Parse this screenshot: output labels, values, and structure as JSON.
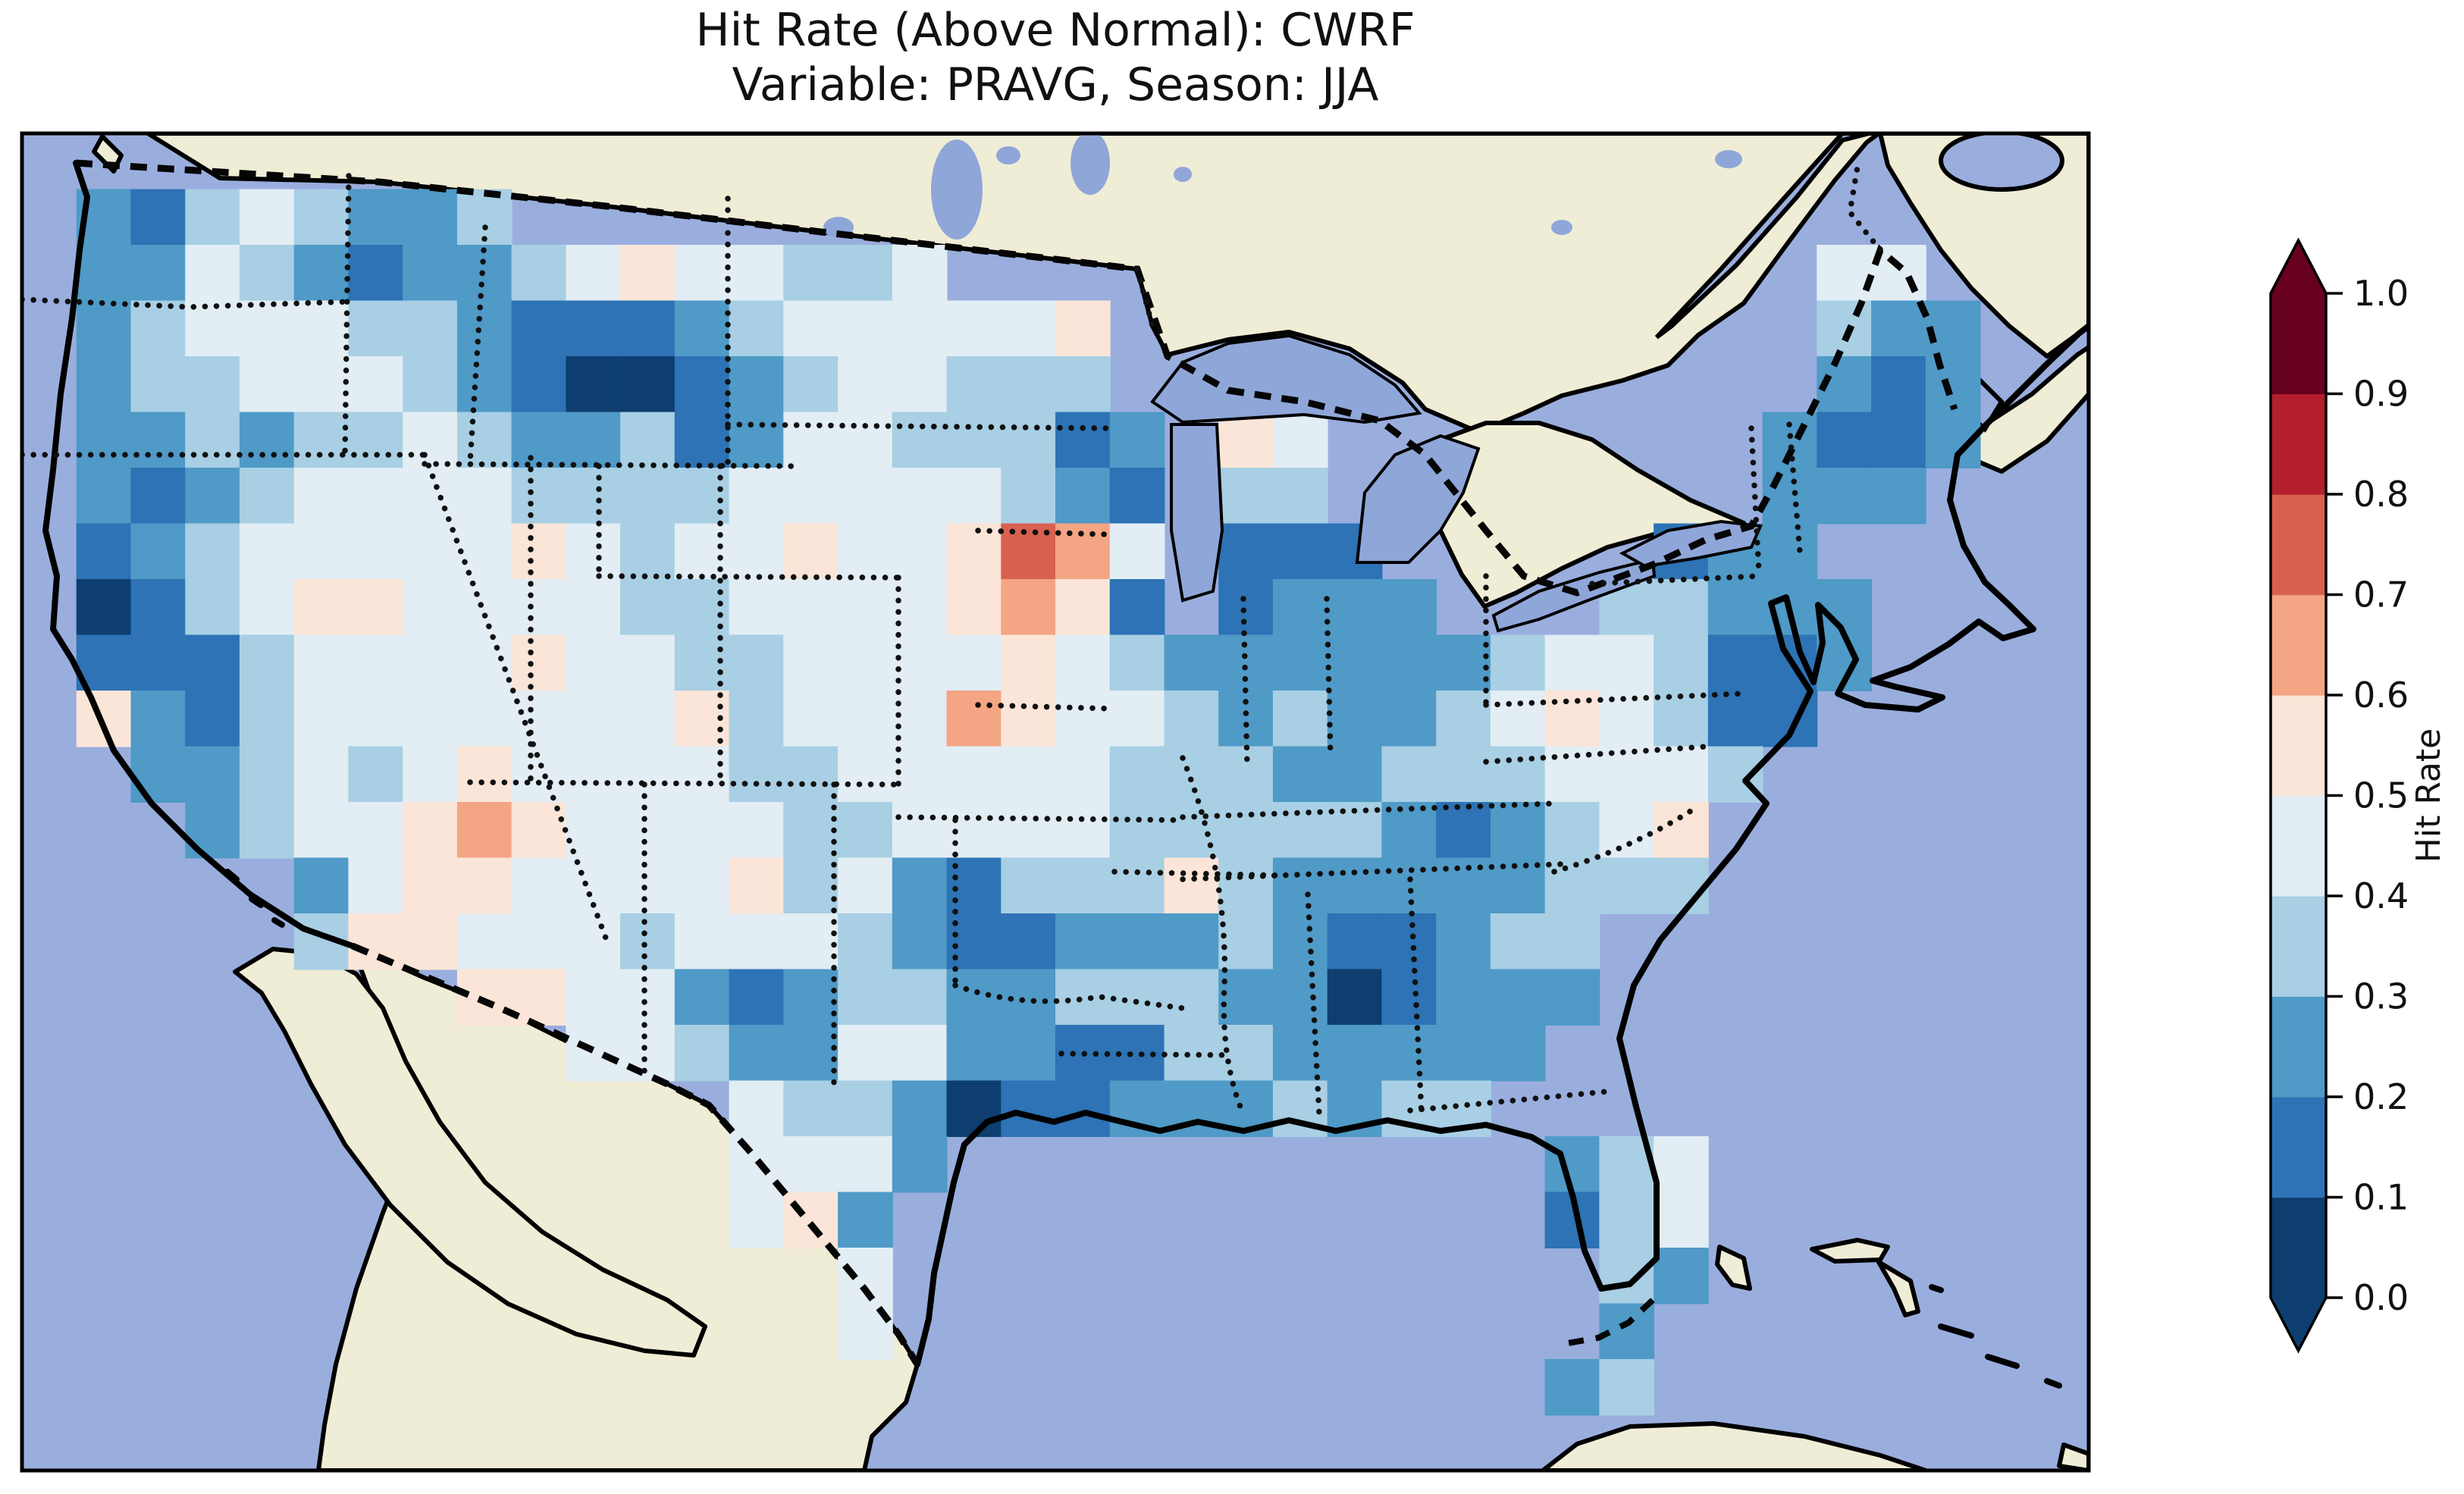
{
  "title": {
    "line1": "Hit Rate (Above Normal): CWRF",
    "line2": "Variable: PRAVG, Season: JJA"
  },
  "colorbar": {
    "label": "Hit Rate",
    "ticks": [
      "0.0",
      "0.1",
      "0.2",
      "0.3",
      "0.4",
      "0.5",
      "0.6",
      "0.7",
      "0.8",
      "0.9",
      "1.0"
    ],
    "tick_values": [
      0.0,
      0.1,
      0.2,
      0.3,
      0.4,
      0.5,
      0.6,
      0.7,
      0.8,
      0.9,
      1.0
    ],
    "band_colors": [
      "#0d3e6f",
      "#2d73b5",
      "#4f9ac7",
      "#a8cfe4",
      "#e2edf4",
      "#fbe5d8",
      "#f4a583",
      "#d8604e",
      "#b41f2e",
      "#67001f"
    ],
    "under_color": "#0d3e6f",
    "over_color": "#67001f",
    "extend": "both"
  },
  "map": {
    "ocean_color": "#9aaede",
    "foreign_land_color": "#f0edd6",
    "lake_color": "#8fa6d9",
    "coast_color": "#000000",
    "frame_color": "#000000"
  },
  "chart_data": {
    "type": "heatmap",
    "title": "Hit Rate (Above Normal): CWRF",
    "subtitle": "Variable: PRAVG, Season: JJA",
    "variable": "PRAVG",
    "season": "JJA",
    "model": "CWRF",
    "metric": "Hit Rate (Above Normal)",
    "legend_label": "Hit Rate",
    "region": "Continental United States",
    "colormap": "RdBu_r binned in 0.1 steps from 0.0 to 1.0, colorbar extended both ends",
    "value_range": [
      0.0,
      1.0
    ],
    "bin_width": 0.1,
    "grid_encoding": {
      ".": "ocean / no data",
      "C": "non-US land (Canada, Mexico, Bahamas, Cuba) - no data",
      "W": "large inland lake - no data",
      "digit 0-9": "hit-rate bin index k, cell value in [k/10, k/10+0.1]"
    },
    "grid_shape": {
      "rows": 24,
      "cols": 38
    },
    "grid": [
      "..CCCCCCCCCCCCCCCCCCCCCCCCCCCCCCCCCCC.",
      ".21343223CCCCCCCCCCCCCCCCCCCCCCCCCCCC.",
      ".2243212234544334CCCCCCCCCCCCCCCC44CC.",
      ".2344433211123444445CCCCCCCCCCCCC322C.",
      ".2334443210012344333CWWWWCCCCCCCC212C.",
      ".22323343223124433312W54WWCCCCCC2112C.",
      ".21234444333344444321W33WCCCCCWW222.CC",
      ".12344444543445445764W111WCCCW122.....",
      ".01345544443344445651W1222WWW33222....",
      ".111344445443344445432222223443112....",
      ".52134444444534446544323223454311.....",
      "..223434544443344444333223334443......",
      "...2344565444433444433333212345.......",
      ".....24554444534213335322222333.......",
      ".....355444344432112223211233.........",
      "....CCCC554421233223332201222.........",
      "....C.CCCC443224422113322222..........",
      ".....CC.CCCCC43320112223233...........",
      ".....CC.CCCCC4442...........234.......",
      "......CC..CCC452............134.......",
      ".......CC..CCC.4.............32C.CC...",
      "........CC..CCC4.............2....C...",
      "......CCCCCCCCC.............23....CC..",
      ".....CCCCCCCCCCCC..........CCCCCC...C."
    ],
    "notable_features": [
      {
        "area": "central Montana",
        "value": "0.0-0.1 minimum"
      },
      {
        "area": "Iowa / Nebraska border",
        "value": "0.7-0.8 maximum"
      },
      {
        "area": "NYC metro",
        "value": "0.0-0.1 minimum"
      },
      {
        "area": "central Alabama",
        "value": "0.0-0.1 minimum"
      },
      {
        "area": "upper Texas coast (Houston)",
        "value": "0.0-0.1 minimum"
      },
      {
        "area": "Arizona and southern New Mexico",
        "value": "0.5-0.6"
      },
      {
        "area": "most of CONUS",
        "value": "0.2-0.5 (below-white blues)"
      }
    ]
  }
}
